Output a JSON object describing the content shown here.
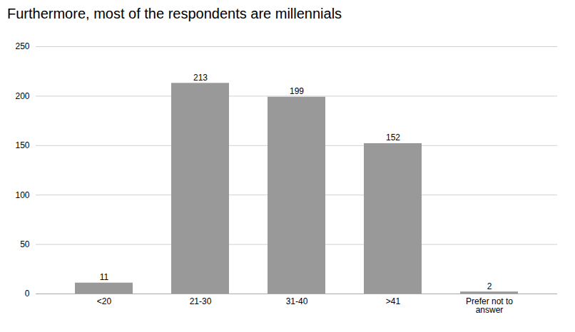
{
  "chart_data": {
    "type": "bar",
    "title": "Furthermore, most of the respondents are millennials",
    "categories": [
      "<20",
      "21-30",
      "31-40",
      ">41",
      "Prefer not to\nanswer"
    ],
    "values": [
      11,
      213,
      199,
      152,
      2
    ],
    "color": "#999999",
    "ylim": [
      0,
      250
    ],
    "yticks": [
      0,
      50,
      100,
      150,
      200,
      250
    ],
    "grid": true,
    "data_labels": true
  }
}
